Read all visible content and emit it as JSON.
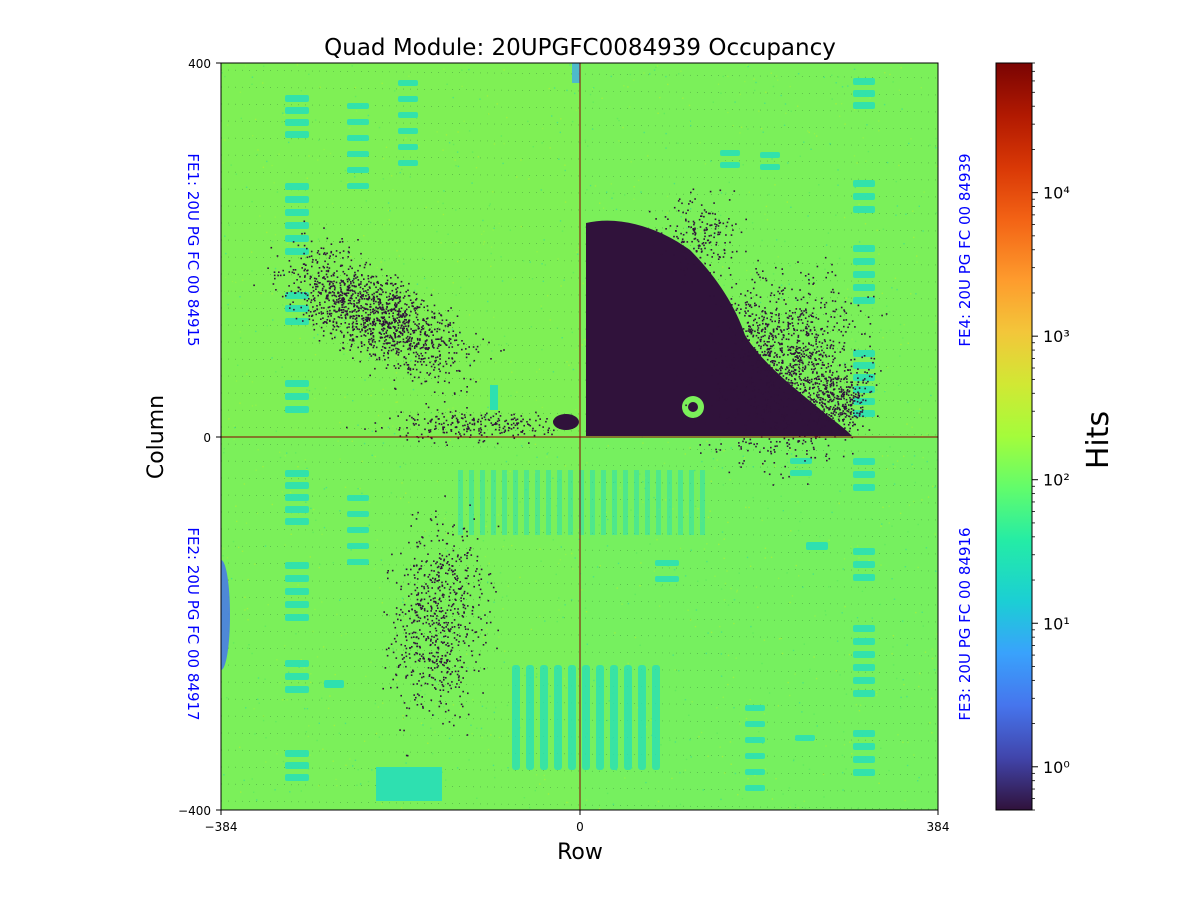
{
  "chart_data": {
    "type": "heatmap",
    "title": "Quad Module: 20UPGFC0084939 Occupancy",
    "xlabel": "Row",
    "ylabel": "Column",
    "xlim": [
      -384,
      384
    ],
    "ylim": [
      -400,
      400
    ],
    "x_ticks": [
      "−384",
      "0",
      "384"
    ],
    "y_ticks": [
      "400",
      "0",
      "−400"
    ],
    "colorbar": {
      "label": "Hits",
      "scale": "log",
      "range": [
        0.5,
        80000
      ],
      "ticks": [
        {
          "value": 1,
          "label": "10⁰"
        },
        {
          "value": 10,
          "label": "10¹"
        },
        {
          "value": 100,
          "label": "10²"
        },
        {
          "value": 1000,
          "label": "10³"
        },
        {
          "value": 10000,
          "label": "10⁴"
        }
      ],
      "colormap": "turbo"
    },
    "dominant_value_hits": 100,
    "frontend_labels": [
      {
        "id": "FE1",
        "text": "FE1: 20U PG FC 00 84915",
        "quadrant": "top-left"
      },
      {
        "id": "FE2",
        "text": "FE2: 20U PG FC 00 84917",
        "quadrant": "bottom-left"
      },
      {
        "id": "FE3",
        "text": "FE3: 20U PG FC 00 84916",
        "quadrant": "bottom-right"
      },
      {
        "id": "FE4",
        "text": "FE4: 20U PG FC 00 84939",
        "quadrant": "top-right"
      }
    ]
  },
  "colors": {
    "background_green": "#7bf05a",
    "cyan_spots": "#2ee0b0",
    "low_occupancy": "#30123b",
    "fe_label": "#0000ff",
    "divider": "#8b0000"
  }
}
